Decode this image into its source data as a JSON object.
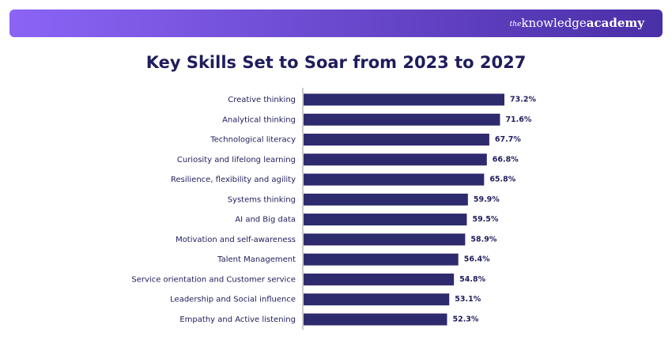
{
  "header": {
    "brand_prefix": "the",
    "brand_main": "knowledge",
    "brand_bold": "academy"
  },
  "chart_data": {
    "type": "hbar",
    "title": "Key Skills Set to Soar from 2023 to 2027",
    "categories": [
      "Creative thinking",
      "Analytical thinking",
      "Technological literacy",
      "Curiosity and lifelong learning",
      "Resilience, flexibility and agility",
      "Systems thinking",
      "AI and Big data",
      "Motivation and self-awareness",
      "Talent Management",
      "Service orientation and Customer service",
      "Leadership and Social influence",
      "Empathy and Active listening"
    ],
    "values": [
      73.2,
      71.6,
      67.7,
      66.8,
      65.8,
      59.9,
      59.5,
      58.9,
      56.4,
      54.8,
      53.1,
      52.3
    ],
    "value_labels": [
      "73.2%",
      "71.6%",
      "67.7%",
      "66.8%",
      "65.8%",
      "59.9%",
      "59.5%",
      "58.9%",
      "56.4%",
      "54.8%",
      "53.1%",
      "52.3%"
    ],
    "color": "#2e2a6e"
  }
}
